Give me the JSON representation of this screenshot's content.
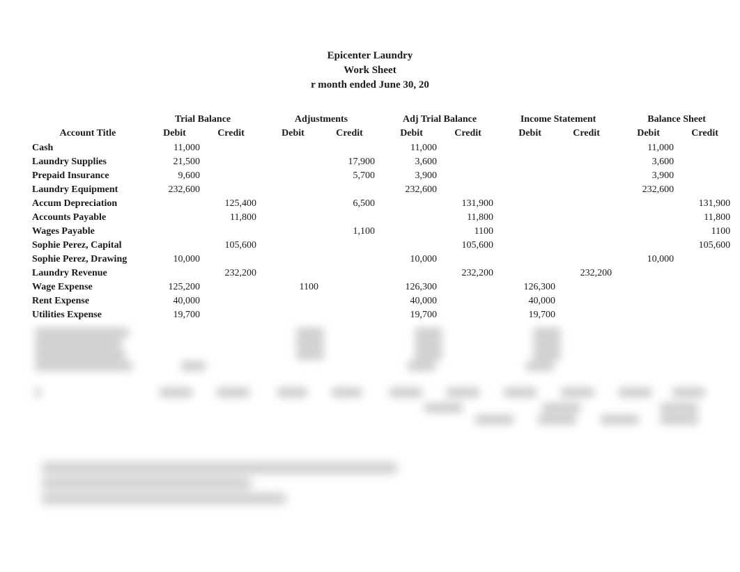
{
  "header": {
    "company": "Epicenter Laundry",
    "title": "Work Sheet",
    "period": "r month ended June 30, 20"
  },
  "columns": {
    "account": "Account Title",
    "groups": [
      "Trial Balance",
      "Adjustments",
      "Adj Trial Balance",
      "Income Statement",
      "Balance Sheet"
    ],
    "debit": "Debit",
    "credit": "Credit"
  },
  "rows": [
    {
      "acct": "Cash",
      "tb_d": "11,000",
      "tb_c": "",
      "adj_d": "",
      "adj_c": "",
      "atb_d": "11,000",
      "atb_c": "",
      "is_d": "",
      "is_c": "",
      "bs_d": "11,000",
      "bs_c": ""
    },
    {
      "acct": "Laundry Supplies",
      "tb_d": "21,500",
      "tb_c": "",
      "adj_d": "",
      "adj_c": "17,900",
      "atb_d": "3,600",
      "atb_c": "",
      "is_d": "",
      "is_c": "",
      "bs_d": "3,600",
      "bs_c": ""
    },
    {
      "acct": "Prepaid Insurance",
      "tb_d": "9,600",
      "tb_c": "",
      "adj_d": "",
      "adj_c": "5,700",
      "atb_d": "3,900",
      "atb_c": "",
      "is_d": "",
      "is_c": "",
      "bs_d": "3,900",
      "bs_c": ""
    },
    {
      "acct": "Laundry Equipment",
      "tb_d": "232,600",
      "tb_c": "",
      "adj_d": "",
      "adj_c": "",
      "atb_d": "232,600",
      "atb_c": "",
      "is_d": "",
      "is_c": "",
      "bs_d": "232,600",
      "bs_c": ""
    },
    {
      "acct": "Accum Depreciation",
      "tb_d": "",
      "tb_c": "125,400",
      "adj_d": "",
      "adj_c": "6,500",
      "atb_d": "",
      "atb_c": "131,900",
      "is_d": "",
      "is_c": "",
      "bs_d": "",
      "bs_c": "131,900"
    },
    {
      "acct": "Accounts Payable",
      "tb_d": "",
      "tb_c": "11,800",
      "adj_d": "",
      "adj_c": "",
      "atb_d": "",
      "atb_c": "11,800",
      "is_d": "",
      "is_c": "",
      "bs_d": "",
      "bs_c": "11,800"
    },
    {
      "acct": "Wages Payable",
      "tb_d": "",
      "tb_c": "",
      "adj_d": "",
      "adj_c": "1,100",
      "atb_d": "",
      "atb_c": "1100",
      "is_d": "",
      "is_c": "",
      "bs_d": "",
      "bs_c": "1100"
    },
    {
      "acct": "Sophie Perez, Capital",
      "tb_d": "",
      "tb_c": "105,600",
      "adj_d": "",
      "adj_c": "",
      "atb_d": "",
      "atb_c": "105,600",
      "is_d": "",
      "is_c": "",
      "bs_d": "",
      "bs_c": "105,600"
    },
    {
      "acct": "Sophie Perez, Drawing",
      "tb_d": "10,000",
      "tb_c": "",
      "adj_d": "",
      "adj_c": "",
      "atb_d": "10,000",
      "atb_c": "",
      "is_d": "",
      "is_c": "",
      "bs_d": "10,000",
      "bs_c": ""
    },
    {
      "acct": "Laundry Revenue",
      "tb_d": "",
      "tb_c": "232,200",
      "adj_d": "",
      "adj_c": "",
      "atb_d": "",
      "atb_c": "232,200",
      "is_d": "",
      "is_c": "232,200",
      "bs_d": "",
      "bs_c": ""
    },
    {
      "acct": "Wage Expense",
      "tb_d": "125,200",
      "tb_c": "",
      "adj_d": "1100",
      "adj_c": "",
      "atb_d": "126,300",
      "atb_c": "",
      "is_d": "126,300",
      "is_c": "",
      "bs_d": "",
      "bs_c": ""
    },
    {
      "acct": "Rent Expense",
      "tb_d": "40,000",
      "tb_c": "",
      "adj_d": "",
      "adj_c": "",
      "atb_d": "40,000",
      "atb_c": "",
      "is_d": "40,000",
      "is_c": "",
      "bs_d": "",
      "bs_c": ""
    },
    {
      "acct": "Utilities Expense",
      "tb_d": "19,700",
      "tb_c": "",
      "adj_d": "",
      "adj_c": "",
      "atb_d": "19,700",
      "atb_c": "",
      "is_d": "19,700",
      "is_c": "",
      "bs_d": "",
      "bs_c": ""
    }
  ],
  "styling": {
    "font_family": "Georgia, serif",
    "header_fontsize": 15,
    "cell_fontsize": 14,
    "text_color": "#1a1a1a",
    "background_color": "#ffffff",
    "col_account_width": 170,
    "col_amount_width": 81,
    "col_gap_width": 8
  }
}
